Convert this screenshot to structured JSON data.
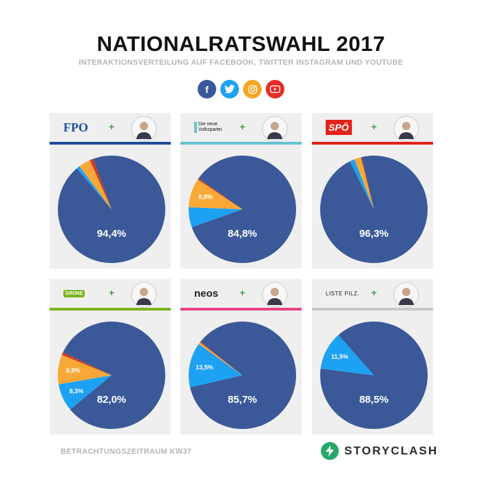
{
  "title": "NATIONALRATSWAHL 2017",
  "subtitle": "INTERAKTIONSVERTEILUNG AUF FACEBOOK, TWITTER INSTAGRAM UND YOUTUBE",
  "social_icons": [
    {
      "name": "facebook-icon",
      "glyph": "f",
      "color": "#3b5998"
    },
    {
      "name": "twitter-icon",
      "glyph": "t",
      "color": "#1da1f2"
    },
    {
      "name": "instagram-icon",
      "glyph": "◎",
      "color": "#f5a623"
    },
    {
      "name": "youtube-icon",
      "glyph": "▶",
      "color": "#e52d27"
    }
  ],
  "series_colors": {
    "facebook": "#3b5998",
    "twitter": "#1da1f2",
    "instagram": "#f7a836",
    "youtube": "#d23a1f"
  },
  "footer_period": "BETRACHTUNGSZEITRAUM KW37",
  "brand": "STORYCLASH",
  "chart_data": [
    {
      "type": "pie",
      "party": "FPÖ",
      "logo_text": "FPO",
      "stripe_color": "#1b4e9b",
      "labels": [
        "Facebook",
        "Twitter",
        "Instagram",
        "YouTube"
      ],
      "values": [
        94.4,
        1.0,
        3.6,
        1.0
      ],
      "data_labels": [
        "94,4%",
        "",
        "",
        ""
      ]
    },
    {
      "type": "pie",
      "party": "ÖVP",
      "logo_text": "Die neue Volkspartei",
      "stripe_color": "#63c3d0",
      "labels": [
        "Facebook",
        "Twitter",
        "Instagram",
        "YouTube"
      ],
      "values": [
        84.8,
        6.0,
        8.8,
        0.4
      ],
      "data_labels": [
        "84,8%",
        "",
        "8,8%",
        ""
      ]
    },
    {
      "type": "pie",
      "party": "SPÖ",
      "logo_text": "SPÖ",
      "stripe_color": "#e2231a",
      "labels": [
        "Facebook",
        "Twitter",
        "Instagram",
        "YouTube"
      ],
      "values": [
        96.3,
        1.5,
        2.0,
        0.2
      ],
      "data_labels": [
        "96,3%",
        "",
        "",
        ""
      ]
    },
    {
      "type": "pie",
      "party": "Grüne",
      "logo_text": "GRÜNE",
      "stripe_color": "#7ab51d",
      "labels": [
        "Facebook",
        "Twitter",
        "Instagram",
        "YouTube"
      ],
      "values": [
        82.0,
        8.3,
        8.9,
        0.8
      ],
      "data_labels": [
        "82,0%",
        "8,3%",
        "8,9%",
        ""
      ]
    },
    {
      "type": "pie",
      "party": "NEOS",
      "logo_text": "neos",
      "stripe_color": "#e84188",
      "labels": [
        "Facebook",
        "Twitter",
        "Instagram",
        "YouTube"
      ],
      "values": [
        85.7,
        13.5,
        0.6,
        0.2
      ],
      "data_labels": [
        "85,7%",
        "13,5%",
        "",
        ""
      ]
    },
    {
      "type": "pie",
      "party": "Liste Pilz",
      "logo_text": "LISTE PILZ.",
      "stripe_color": "#c8c8c8",
      "labels": [
        "Facebook",
        "Twitter",
        "Instagram",
        "YouTube"
      ],
      "values": [
        88.5,
        11.5,
        0.0,
        0.0
      ],
      "data_labels": [
        "88,5%",
        "11,5%",
        "",
        ""
      ]
    }
  ]
}
